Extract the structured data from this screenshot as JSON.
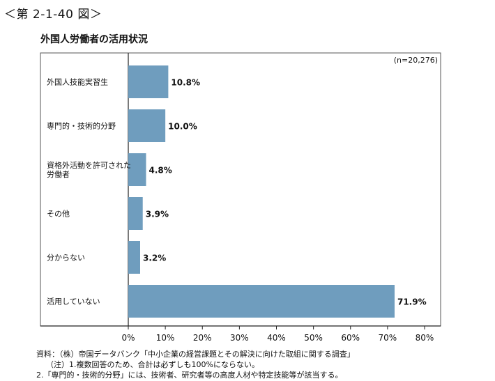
{
  "figure_number": "＜第 2-1-40 図＞",
  "title": "外国人労働者の活用状況",
  "sample_note": "(n=20,276)",
  "chart_data": {
    "type": "bar",
    "orientation": "horizontal",
    "categories": [
      [
        "外国人技能実習生"
      ],
      [
        "専門的・技術的分野"
      ],
      [
        "資格外活動を許可された",
        "労働者"
      ],
      [
        "その他"
      ],
      [
        "分からない"
      ],
      [
        "活用していない"
      ]
    ],
    "values": [
      10.8,
      10.0,
      4.8,
      3.9,
      3.2,
      71.9
    ],
    "value_labels": [
      "10.8%",
      "10.0%",
      "4.8%",
      "3.9%",
      "3.2%",
      "71.9%"
    ],
    "xlim": [
      0,
      80
    ],
    "ticks": [
      0,
      10,
      20,
      30,
      40,
      50,
      60,
      70,
      80
    ],
    "tick_labels": [
      "0%",
      "10%",
      "20%",
      "30%",
      "40%",
      "50%",
      "60%",
      "70%",
      "80%"
    ],
    "bar_color": "#6f9dbe",
    "grid": false
  },
  "source_notes": [
    "資料：（株）帝国データバンク「中小企業の経営課題とその解決に向けた取組に関する調査」",
    "（注）1.複数回答のため、合計は必ずしも100%にならない。",
    "2.「専門的・技術的分野」には、技術者、研究者等の高度人材や特定技能等が該当する。"
  ]
}
